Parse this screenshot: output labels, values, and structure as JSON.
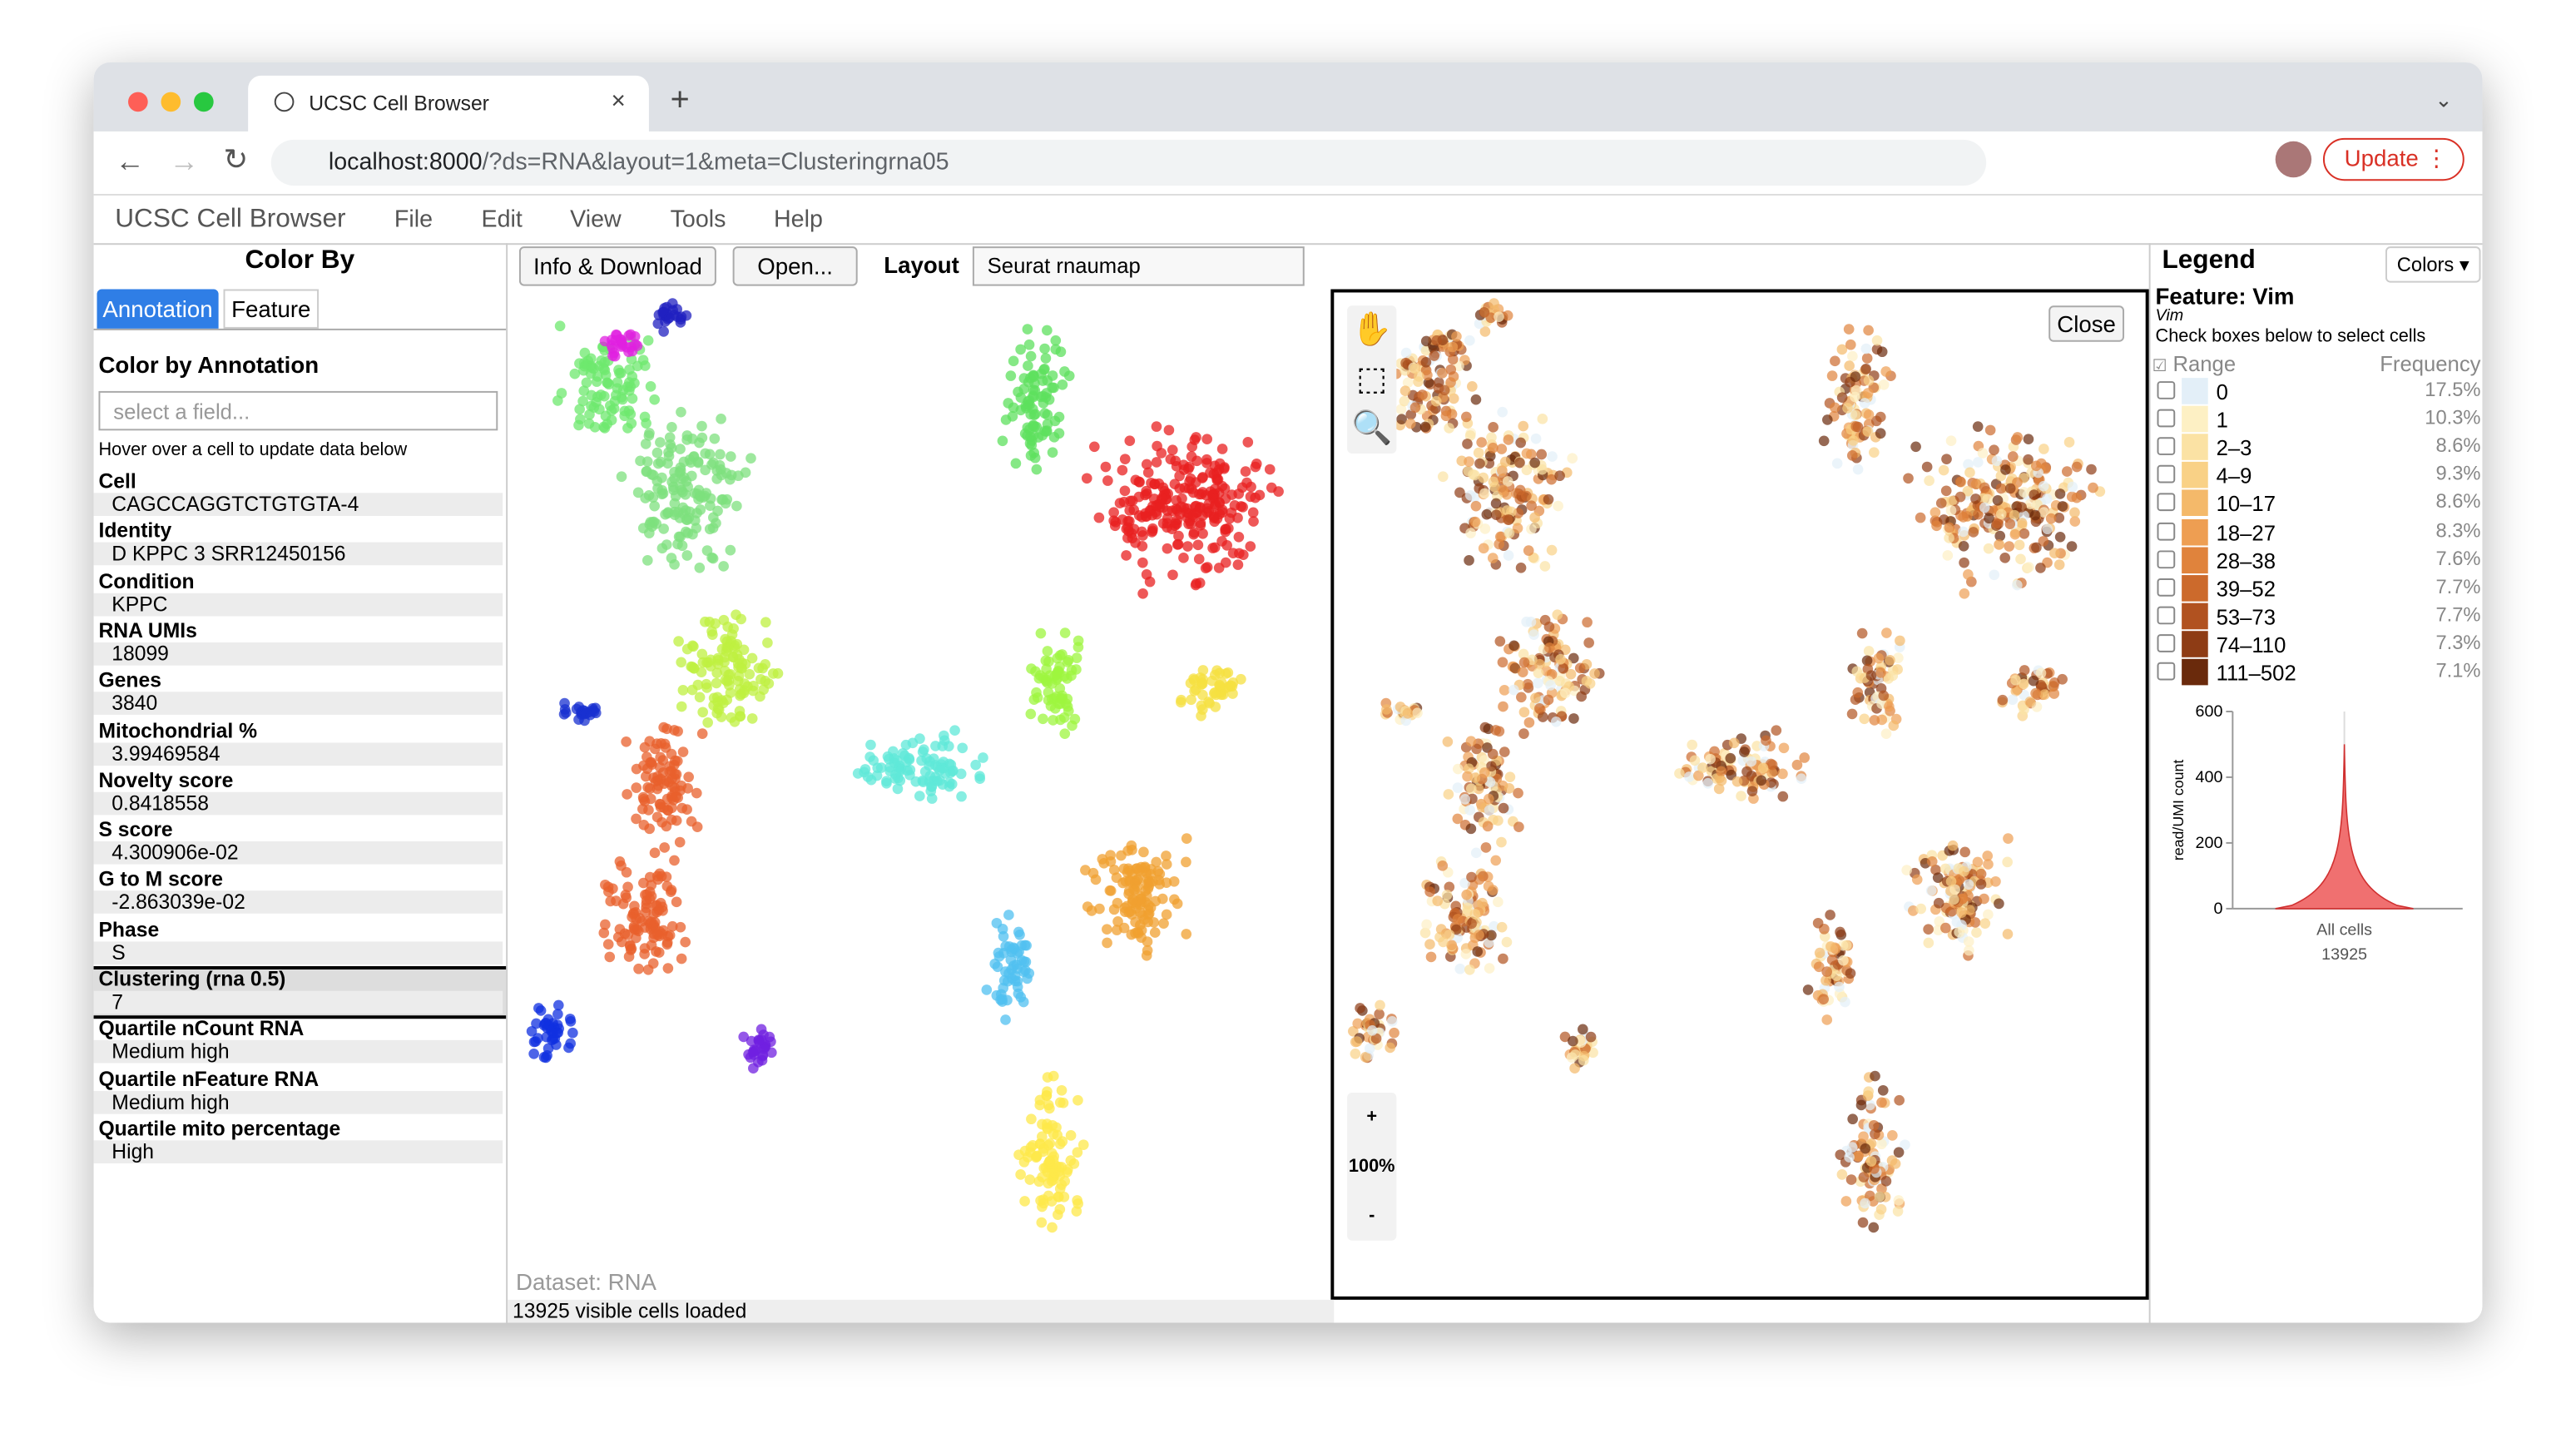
{
  "browser": {
    "tab_title": "UCSC Cell Browser",
    "url_host": "localhost:8000",
    "url_path": "/?ds=RNA&layout=1&meta=Clusteringrna05",
    "update": "Update"
  },
  "menu": {
    "app_title": "UCSC Cell Browser",
    "items": [
      "File",
      "Edit",
      "View",
      "Tools",
      "Help"
    ]
  },
  "left": {
    "title": "Color By",
    "tabs": [
      "Annotation",
      "Feature"
    ],
    "section": "Color by Annotation",
    "placeholder": "select a field...",
    "hint": "Hover over a cell to update data below",
    "fields": [
      {
        "label": "Cell",
        "value": "CAGCCAGGTCTGTGTA-4"
      },
      {
        "label": "Identity",
        "value": "D KPPC 3 SRR12450156"
      },
      {
        "label": "Condition",
        "value": "KPPC"
      },
      {
        "label": "RNA UMIs",
        "value": "18099"
      },
      {
        "label": "Genes",
        "value": "3840"
      },
      {
        "label": "Mitochondrial %",
        "value": "3.99469584"
      },
      {
        "label": "Novelty score",
        "value": "0.8418558"
      },
      {
        "label": "S score",
        "value": "4.300906e-02"
      },
      {
        "label": "G to M score",
        "value": "-2.863039e-02"
      },
      {
        "label": "Phase",
        "value": "S"
      },
      {
        "label": "Clustering (rna 0.5)",
        "value": "7"
      },
      {
        "label": "Quartile nCount RNA",
        "value": "Medium high"
      },
      {
        "label": "Quartile nFeature RNA",
        "value": "Medium high"
      },
      {
        "label": "Quartile mito percentage",
        "value": "High"
      }
    ]
  },
  "toolbar": {
    "buttons": [
      "Info & Download",
      "Open..."
    ],
    "layout_label": "Layout",
    "layout_value": "Seurat rnaumap"
  },
  "plot": {
    "dataset": "Dataset: RNA",
    "status": "13925 visible cells loaded",
    "close": "Close",
    "zoom": [
      "+",
      "100%",
      "-"
    ]
  },
  "legend": {
    "title": "Legend",
    "colors": "Colors",
    "feature": "Feature: Vim",
    "gene": "Vim",
    "hint": "Check boxes below to select cells",
    "header_range": "Range",
    "header_freq": "Frequency",
    "rows": [
      {
        "range": "0",
        "freq": "17.5%",
        "color": "#e3eff8"
      },
      {
        "range": "1",
        "freq": "10.3%",
        "color": "#fdf0c4"
      },
      {
        "range": "2–3",
        "freq": "8.6%",
        "color": "#fbe2a4"
      },
      {
        "range": "4–9",
        "freq": "9.3%",
        "color": "#f9d186"
      },
      {
        "range": "10–17",
        "freq": "8.6%",
        "color": "#f4b96a"
      },
      {
        "range": "18–27",
        "freq": "8.3%",
        "color": "#ee9e52"
      },
      {
        "range": "28–38",
        "freq": "7.6%",
        "color": "#e0833c"
      },
      {
        "range": "39–52",
        "freq": "7.7%",
        "color": "#cc6a2c"
      },
      {
        "range": "53–73",
        "freq": "7.7%",
        "color": "#b15220"
      },
      {
        "range": "74–110",
        "freq": "7.3%",
        "color": "#8e3c15"
      },
      {
        "range": "111–502",
        "freq": "7.1%",
        "color": "#6a2a0c"
      }
    ],
    "violin": {
      "ylabel": "read/UMI count",
      "yticks": [
        0,
        200,
        400,
        600
      ],
      "ylim": [
        0,
        600
      ],
      "category": "All cells",
      "count": "13925"
    }
  }
}
